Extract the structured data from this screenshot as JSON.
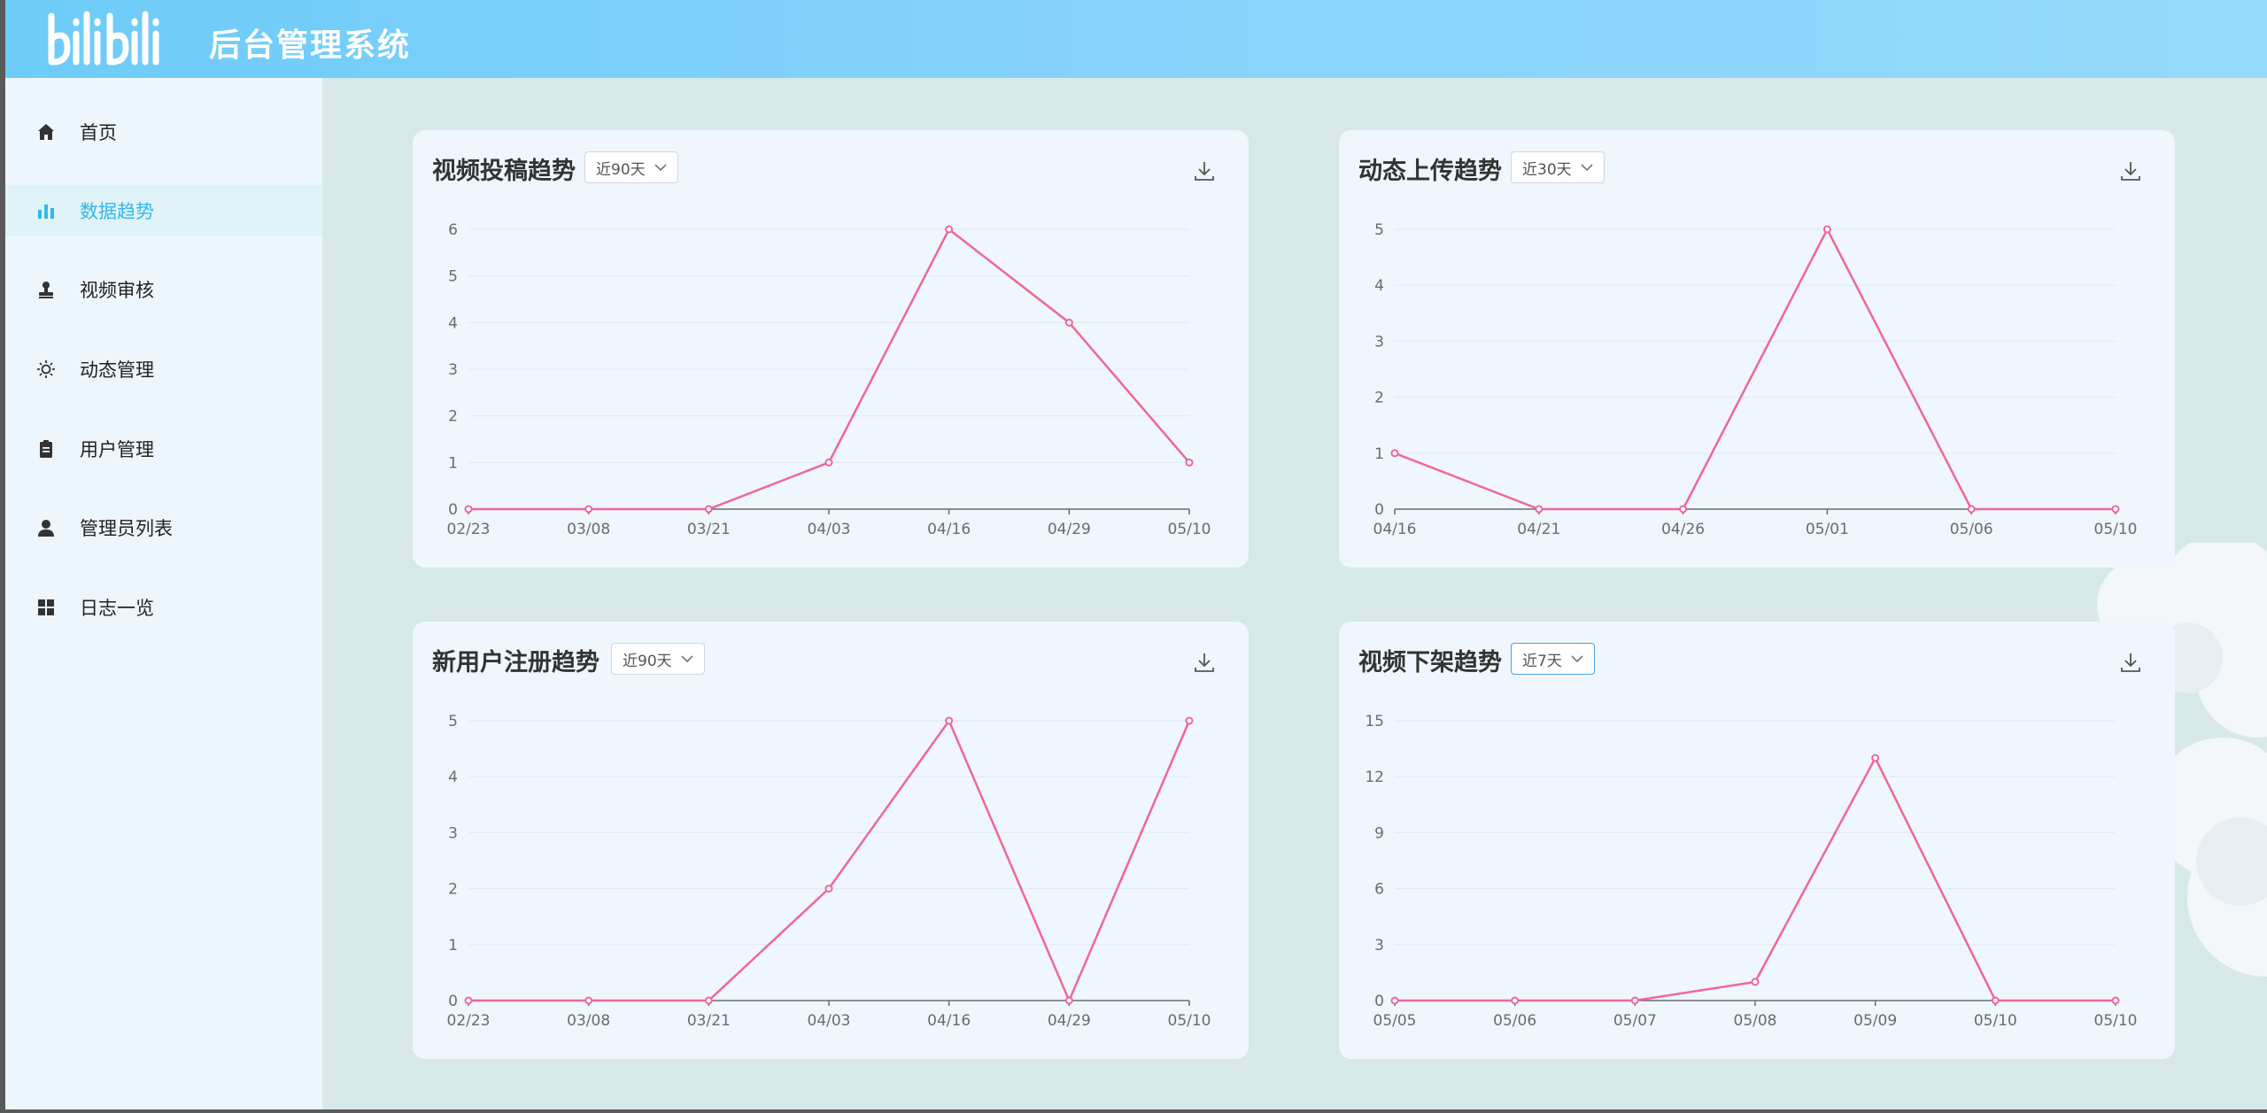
{
  "header": {
    "logo_text": "bilibili",
    "title": "后台管理系统"
  },
  "sidebar": {
    "items": [
      {
        "label": "首页",
        "icon": "home-icon",
        "active": false
      },
      {
        "label": "数据趋势",
        "icon": "bar-chart-icon",
        "active": true
      },
      {
        "label": "视频审核",
        "icon": "stamp-icon",
        "active": false
      },
      {
        "label": "动态管理",
        "icon": "sun-icon",
        "active": false
      },
      {
        "label": "用户管理",
        "icon": "clipboard-icon",
        "active": false
      },
      {
        "label": "管理员列表",
        "icon": "user-icon",
        "active": false
      },
      {
        "label": "日志一览",
        "icon": "grid-icon",
        "active": false
      }
    ]
  },
  "colors": {
    "line": "#f0669a",
    "accent": "#35b7ee",
    "axis": "#6b6b6b",
    "grid": "#e3e8ee"
  },
  "cards": [
    {
      "title": "视频投稿趋势",
      "range": "近90天",
      "chart_data": {
        "type": "line",
        "title": "视频投稿趋势",
        "x": [
          "02/23",
          "03/08",
          "03/21",
          "04/03",
          "04/16",
          "04/29",
          "05/10"
        ],
        "values": [
          0,
          0,
          0,
          1,
          6,
          4,
          1
        ],
        "yticks": [
          "0",
          "1",
          "2",
          "3",
          "4",
          "5",
          "6"
        ],
        "ylim": [
          0,
          6
        ],
        "grid": true
      }
    },
    {
      "title": "动态上传趋势",
      "range": "近30天",
      "chart_data": {
        "type": "line",
        "title": "动态上传趋势",
        "x": [
          "04/16",
          "04/21",
          "04/26",
          "05/01",
          "05/06",
          "05/10"
        ],
        "values": [
          1,
          0,
          0,
          5,
          0,
          0
        ],
        "yticks": [
          "0",
          "1",
          "2",
          "3",
          "4",
          "5"
        ],
        "ylim": [
          0,
          5
        ],
        "grid": true
      }
    },
    {
      "title": "新用户注册趋势",
      "range": "近90天",
      "chart_data": {
        "type": "line",
        "title": "新用户注册趋势",
        "x": [
          "02/23",
          "03/08",
          "03/21",
          "04/03",
          "04/16",
          "04/29",
          "05/10"
        ],
        "values": [
          0,
          0,
          0,
          2,
          5,
          0,
          5
        ],
        "yticks": [
          "0",
          "1",
          "2",
          "3",
          "4",
          "5"
        ],
        "ylim": [
          0,
          5
        ],
        "grid": true
      }
    },
    {
      "title": "视频下架趋势",
      "range": "近7天",
      "chart_data": {
        "type": "line",
        "title": "视频下架趋势",
        "x": [
          "05/05",
          "05/06",
          "05/07",
          "05/08",
          "05/09",
          "05/10",
          "05/10"
        ],
        "values": [
          0,
          0,
          0,
          1,
          13,
          0,
          0
        ],
        "yticks": [
          "0",
          "3",
          "6",
          "9",
          "12",
          "15"
        ],
        "ylim": [
          0,
          15
        ],
        "grid": true
      }
    }
  ]
}
